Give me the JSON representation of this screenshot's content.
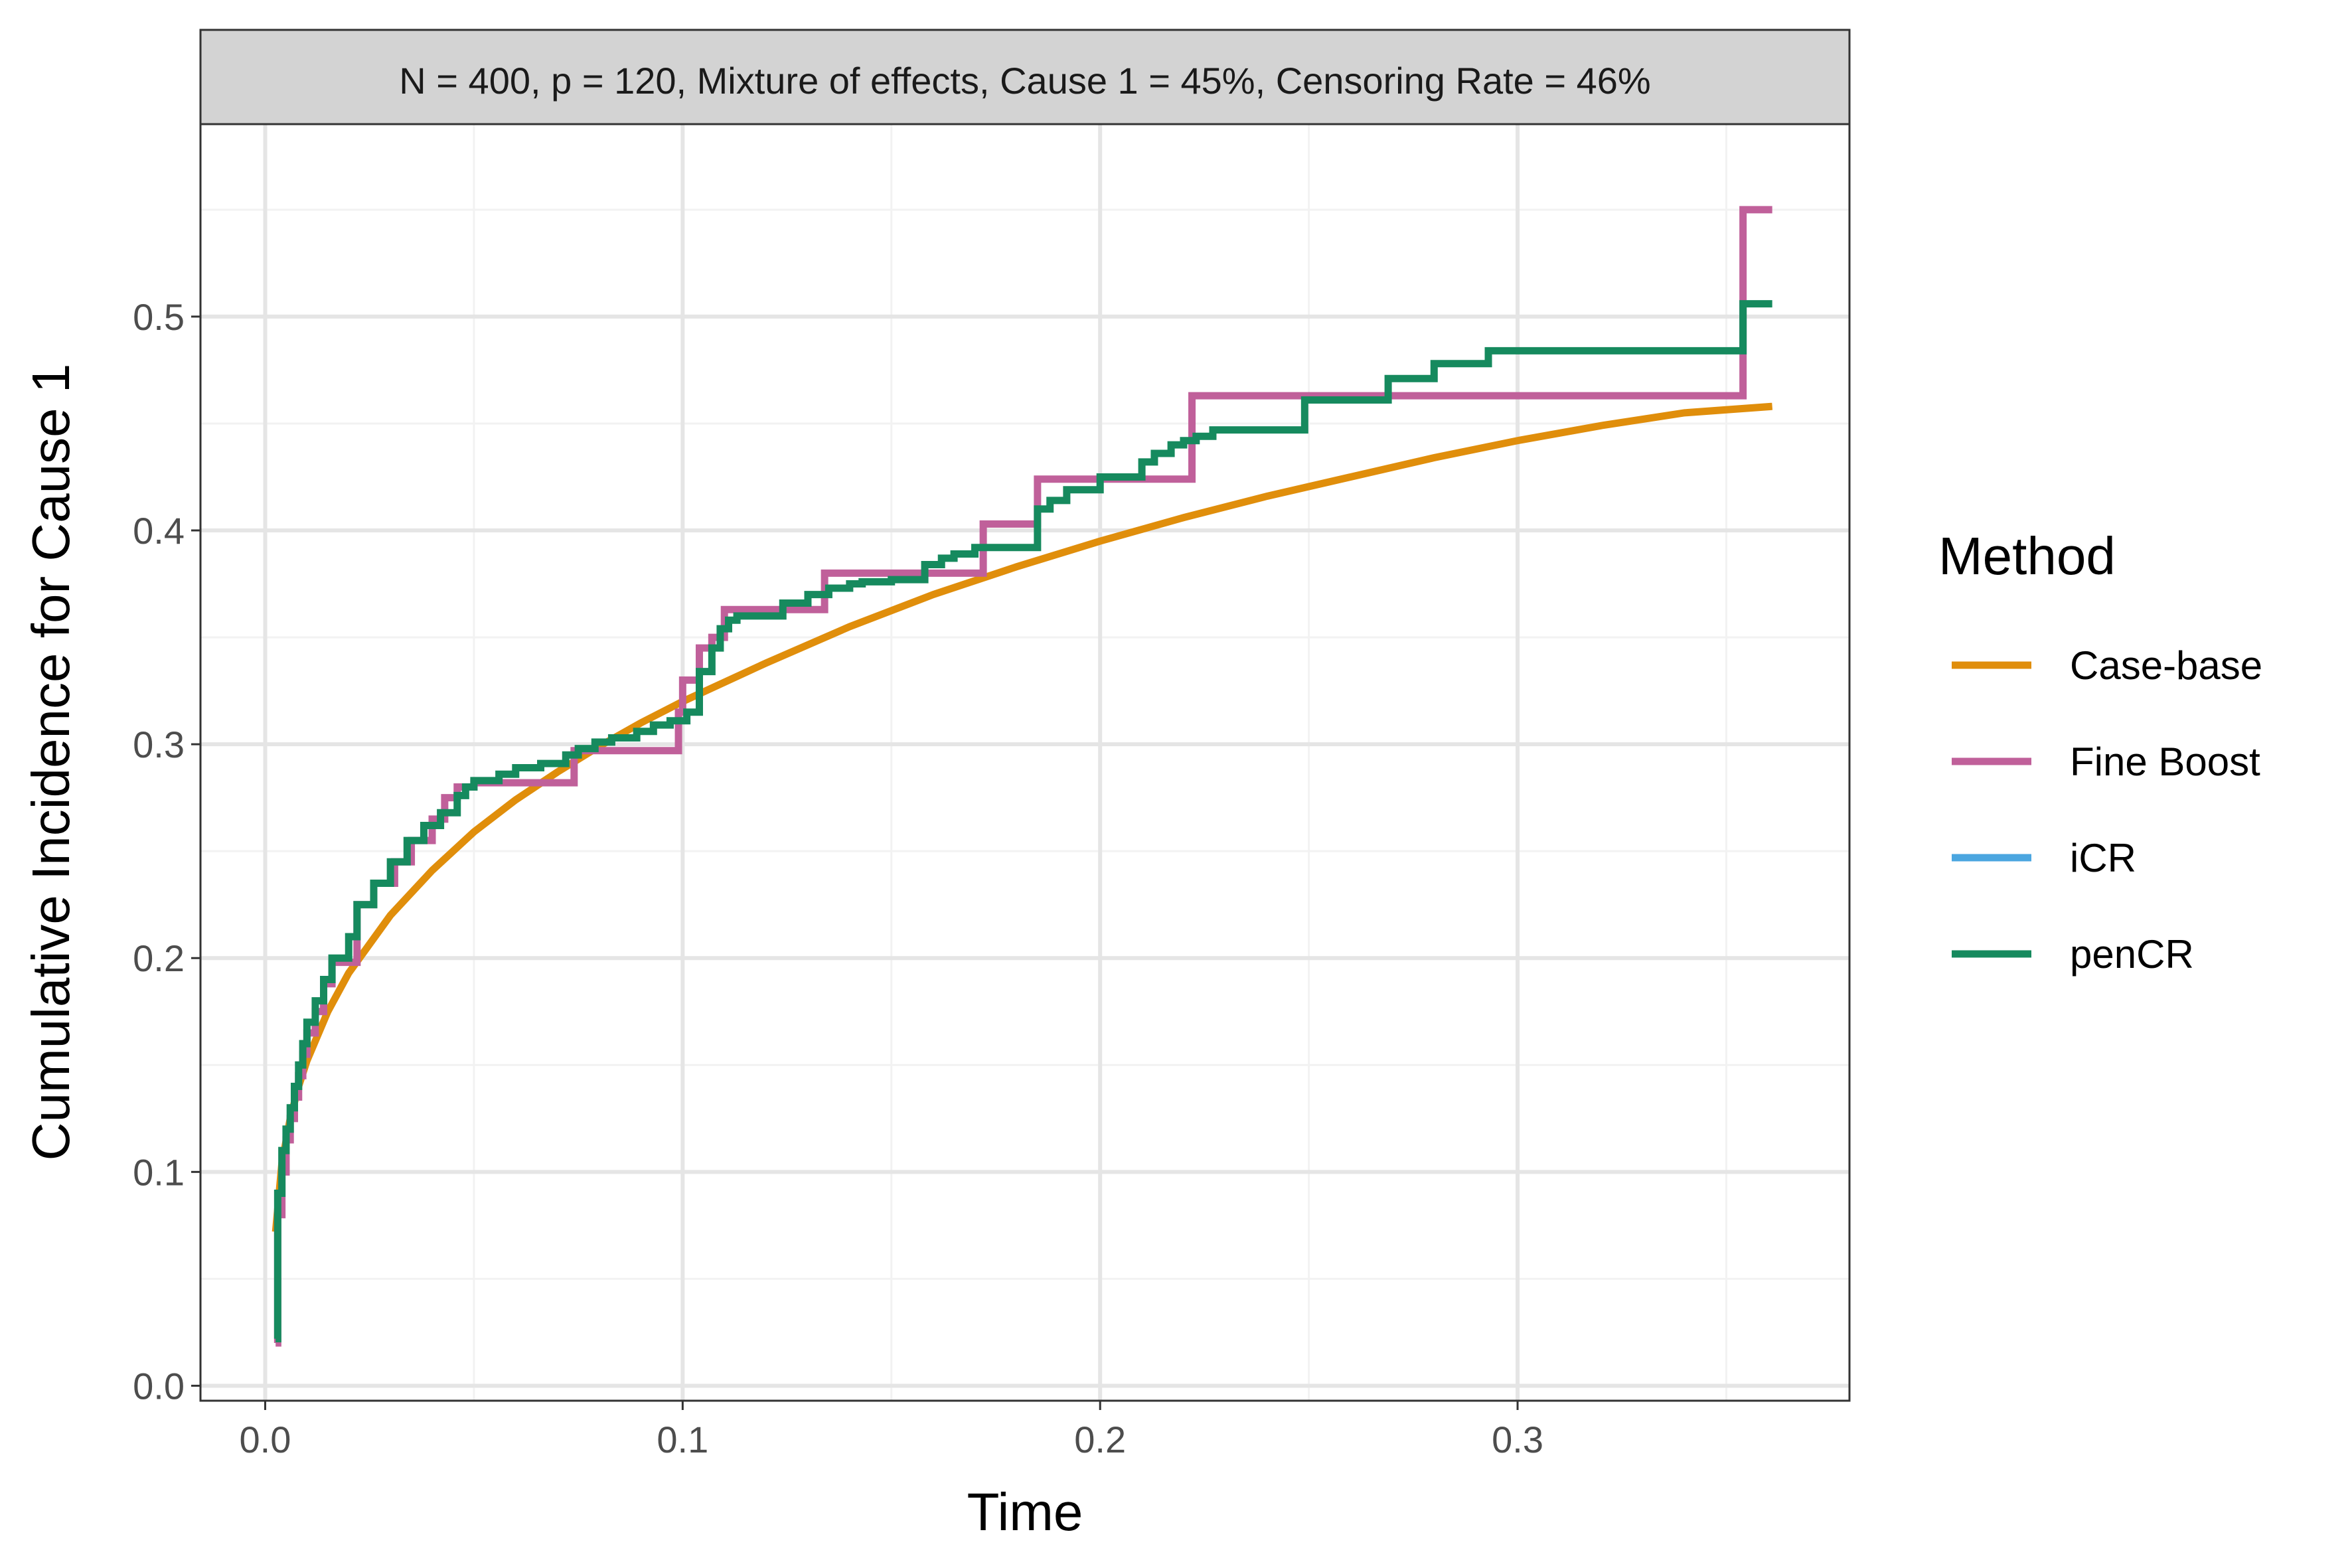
{
  "colors": {
    "case_base": "#E08E0B",
    "fine_boost": "#C0609A",
    "icr": "#4BA6E0",
    "pencr": "#168A5E",
    "grid_major": "#E5E5E5",
    "grid_minor": "#F2F2F2",
    "strip_fill": "#D3D3D3",
    "panel_border": "#333333"
  },
  "chart_data": {
    "type": "line",
    "facet_title": "N = 400, p = 120, Mixture of effects, Cause 1 = 45%, Censoring Rate = 46%",
    "xlabel": "Time",
    "ylabel": "Cumulative Incidence for Cause 1",
    "xlim": [
      -0.0155,
      0.3795
    ],
    "ylim": [
      -0.007,
      0.59
    ],
    "x_ticks": [
      0.0,
      0.1,
      0.2,
      0.3
    ],
    "x_tick_labels": [
      "0.0",
      "0.1",
      "0.2",
      "0.3"
    ],
    "y_ticks": [
      0.0,
      0.1,
      0.2,
      0.3,
      0.4,
      0.5
    ],
    "y_tick_labels": [
      "0.0",
      "0.1",
      "0.2",
      "0.3",
      "0.4",
      "0.5"
    ],
    "grid": true,
    "legend": {
      "title": "Method",
      "position": "right",
      "entries": [
        "Case-base",
        "Fine Boost",
        "iCR",
        "penCR"
      ]
    },
    "series": [
      {
        "name": "Case-base",
        "style": "smooth",
        "color_key": "case_base",
        "x": [
          0.0025,
          0.004,
          0.006,
          0.008,
          0.01,
          0.015,
          0.02,
          0.03,
          0.04,
          0.05,
          0.06,
          0.07,
          0.08,
          0.09,
          0.1,
          0.12,
          0.14,
          0.16,
          0.18,
          0.2,
          0.22,
          0.24,
          0.26,
          0.28,
          0.3,
          0.32,
          0.34,
          0.361
        ],
        "y": [
          0.072,
          0.104,
          0.125,
          0.14,
          0.152,
          0.175,
          0.193,
          0.22,
          0.241,
          0.259,
          0.274,
          0.287,
          0.299,
          0.31,
          0.32,
          0.338,
          0.355,
          0.37,
          0.383,
          0.395,
          0.406,
          0.416,
          0.425,
          0.434,
          0.442,
          0.449,
          0.455,
          0.458
        ]
      },
      {
        "name": "Fine Boost",
        "style": "step",
        "color_key": "fine_boost",
        "x": [
          0.0025,
          0.003,
          0.004,
          0.005,
          0.006,
          0.007,
          0.008,
          0.009,
          0.01,
          0.012,
          0.014,
          0.016,
          0.022,
          0.026,
          0.031,
          0.035,
          0.04,
          0.043,
          0.046,
          0.05,
          0.074,
          0.099,
          0.1,
          0.104,
          0.107,
          0.11,
          0.134,
          0.172,
          0.185,
          0.222,
          0.354,
          0.361
        ],
        "y": [
          0.02,
          0.08,
          0.1,
          0.115,
          0.125,
          0.135,
          0.145,
          0.155,
          0.165,
          0.175,
          0.188,
          0.198,
          0.225,
          0.235,
          0.245,
          0.255,
          0.265,
          0.275,
          0.28,
          0.282,
          0.297,
          0.315,
          0.33,
          0.345,
          0.35,
          0.363,
          0.38,
          0.403,
          0.424,
          0.463,
          0.55,
          0.55
        ]
      },
      {
        "name": "iCR",
        "style": "step",
        "color_key": "icr",
        "x": [],
        "y": []
      },
      {
        "name": "penCR",
        "style": "step",
        "color_key": "pencr",
        "x": [
          0.0025,
          0.003,
          0.004,
          0.005,
          0.006,
          0.007,
          0.008,
          0.009,
          0.01,
          0.012,
          0.014,
          0.016,
          0.02,
          0.022,
          0.026,
          0.03,
          0.034,
          0.038,
          0.042,
          0.046,
          0.048,
          0.05,
          0.056,
          0.06,
          0.066,
          0.072,
          0.075,
          0.079,
          0.083,
          0.089,
          0.093,
          0.097,
          0.101,
          0.104,
          0.107,
          0.109,
          0.111,
          0.113,
          0.124,
          0.13,
          0.135,
          0.14,
          0.143,
          0.15,
          0.158,
          0.162,
          0.165,
          0.17,
          0.185,
          0.188,
          0.192,
          0.2,
          0.21,
          0.213,
          0.217,
          0.22,
          0.223,
          0.227,
          0.249,
          0.269,
          0.28,
          0.293,
          0.354,
          0.361
        ],
        "y": [
          0.022,
          0.09,
          0.11,
          0.12,
          0.13,
          0.14,
          0.15,
          0.16,
          0.17,
          0.18,
          0.19,
          0.2,
          0.21,
          0.225,
          0.235,
          0.245,
          0.255,
          0.262,
          0.268,
          0.276,
          0.28,
          0.283,
          0.286,
          0.289,
          0.291,
          0.295,
          0.298,
          0.301,
          0.303,
          0.306,
          0.309,
          0.311,
          0.315,
          0.334,
          0.345,
          0.354,
          0.358,
          0.36,
          0.366,
          0.37,
          0.373,
          0.375,
          0.376,
          0.377,
          0.384,
          0.387,
          0.389,
          0.392,
          0.41,
          0.414,
          0.419,
          0.425,
          0.432,
          0.436,
          0.44,
          0.442,
          0.444,
          0.447,
          0.461,
          0.471,
          0.478,
          0.484,
          0.506,
          0.506
        ]
      }
    ]
  }
}
